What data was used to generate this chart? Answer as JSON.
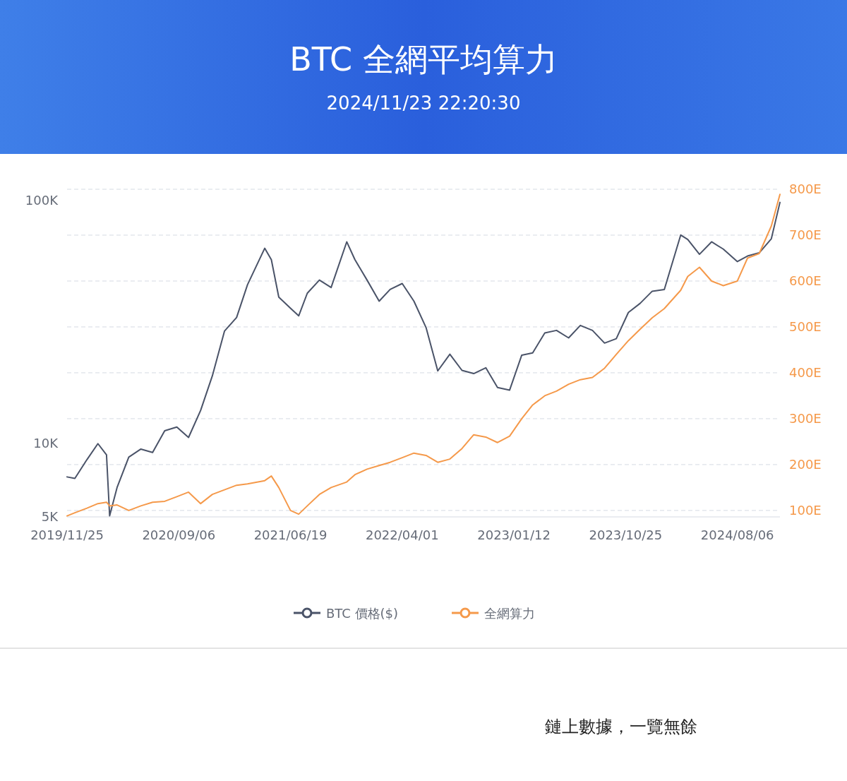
{
  "chart_data": {
    "type": "line",
    "title": "BTC 全網平均算力",
    "subtitle": "2024/11/23 22:20:30",
    "x": [
      "2019-11-25",
      "2019-12-15",
      "2020-01-15",
      "2020-02-12",
      "2020-03-05",
      "2020-03-13",
      "2020-04-01",
      "2020-05-01",
      "2020-06-01",
      "2020-07-01",
      "2020-08-01",
      "2020-09-01",
      "2020-10-01",
      "2020-11-01",
      "2020-12-01",
      "2021-01-01",
      "2021-02-01",
      "2021-03-01",
      "2021-04-14",
      "2021-05-01",
      "2021-05-20",
      "2021-06-19",
      "2021-07-10",
      "2021-08-01",
      "2021-09-01",
      "2021-10-01",
      "2021-11-10",
      "2021-12-01",
      "2022-01-01",
      "2022-02-01",
      "2022-03-01",
      "2022-04-01",
      "2022-05-01",
      "2022-06-01",
      "2022-07-01",
      "2022-08-01",
      "2022-09-01",
      "2022-10-01",
      "2022-11-01",
      "2022-12-01",
      "2023-01-01",
      "2023-02-01",
      "2023-03-01",
      "2023-04-01",
      "2023-05-01",
      "2023-06-01",
      "2023-07-01",
      "2023-08-01",
      "2023-09-01",
      "2023-10-01",
      "2023-11-01",
      "2023-12-01",
      "2024-01-01",
      "2024-02-01",
      "2024-03-14",
      "2024-04-01",
      "2024-05-01",
      "2024-06-01",
      "2024-07-01",
      "2024-08-06",
      "2024-09-01",
      "2024-10-01",
      "2024-11-01",
      "2024-11-23"
    ],
    "series": [
      {
        "name": "BTC 價格($)",
        "color": "#4a5368",
        "values": [
          7300,
          7200,
          8600,
          10000,
          9000,
          5050,
          6600,
          8800,
          9500,
          9200,
          11300,
          11700,
          10600,
          13700,
          19000,
          29000,
          33000,
          45000,
          63500,
          57000,
          40000,
          36000,
          33500,
          41500,
          47000,
          43800,
          67500,
          57000,
          47000,
          38500,
          43000,
          45500,
          38500,
          30000,
          19900,
          23300,
          20000,
          19400,
          20500,
          17000,
          16600,
          23100,
          23600,
          28500,
          29200,
          27200,
          30600,
          29200,
          25900,
          27000,
          34600,
          37700,
          42300,
          43000,
          72000,
          69000,
          60000,
          67500,
          63000,
          56000,
          59000,
          60800,
          69500,
          98000
        ]
      },
      {
        "name": "全網算力",
        "color": "#f5994a",
        "axis": "y2",
        "values": [
          88,
          95,
          105,
          115,
          118,
          110,
          112,
          100,
          110,
          118,
          120,
          130,
          140,
          115,
          135,
          145,
          155,
          158,
          165,
          175,
          150,
          100,
          92,
          110,
          135,
          150,
          162,
          178,
          190,
          198,
          205,
          215,
          225,
          220,
          205,
          212,
          235,
          265,
          260,
          248,
          262,
          300,
          330,
          350,
          360,
          375,
          385,
          390,
          410,
          440,
          470,
          495,
          520,
          540,
          580,
          610,
          630,
          600,
          590,
          600,
          650,
          660,
          720,
          789
        ]
      }
    ],
    "xlim": [
      "2019-11-25",
      "2024-11-23"
    ],
    "xticks": [
      {
        "value": "2019-11-25",
        "label": "2019/11/25"
      },
      {
        "value": "2020-09-06",
        "label": "2020/09/06"
      },
      {
        "value": "2021-06-19",
        "label": "2021/06/19"
      },
      {
        "value": "2022-04-01",
        "label": "2022/04/01"
      },
      {
        "value": "2023-01-12",
        "label": "2023/01/12"
      },
      {
        "value": "2023-10-25",
        "label": "2023/10/25"
      },
      {
        "value": "2024-08-06",
        "label": "2024/08/06"
      }
    ],
    "log": "y",
    "ylim": [
      5000,
      111000
    ],
    "yticks": [
      {
        "value": 5000,
        "label": "5K"
      },
      {
        "value": 10000,
        "label": "10K"
      },
      {
        "value": 100000,
        "label": "100K"
      }
    ],
    "y2lim": [
      86,
      800
    ],
    "y2ticks": [
      {
        "value": 100,
        "label": "100E"
      },
      {
        "value": 200,
        "label": "200E"
      },
      {
        "value": 300,
        "label": "300E"
      },
      {
        "value": 400,
        "label": "400E"
      },
      {
        "value": 500,
        "label": "500E"
      },
      {
        "value": 600,
        "label": "600E"
      },
      {
        "value": 700,
        "label": "700E"
      },
      {
        "value": 800,
        "label": "800E"
      }
    ],
    "grid": "y2",
    "legend": "bottom",
    "marker": "none",
    "annotations": [
      "鏈上數據，一覽無餘"
    ]
  }
}
